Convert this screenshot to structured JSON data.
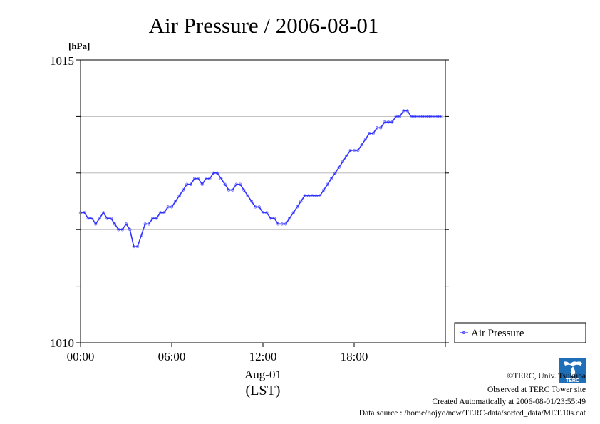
{
  "chart_data": {
    "type": "line",
    "title": "Air Pressure / 2006-08-01",
    "ylabel": "[hPa]",
    "xlabel_date": "Aug-01",
    "xlabel_tz": "(LST)",
    "ylim": [
      1010,
      1015
    ],
    "xlim": [
      "00:00",
      "24:00"
    ],
    "y_tick_labels": [
      "1015",
      "1010"
    ],
    "x_tick_labels": [
      "00:00",
      "06:00",
      "12:00",
      "18:00"
    ],
    "grid": true,
    "legend_position": "right",
    "series": [
      {
        "name": "Air Pressure",
        "color": "#3333ff",
        "x_hours": [
          0.0,
          0.25,
          0.5,
          0.75,
          1.0,
          1.25,
          1.5,
          1.75,
          2.0,
          2.25,
          2.5,
          2.75,
          3.0,
          3.25,
          3.5,
          3.75,
          4.0,
          4.25,
          4.5,
          4.75,
          5.0,
          5.25,
          5.5,
          5.75,
          6.0,
          6.25,
          6.5,
          6.75,
          7.0,
          7.25,
          7.5,
          7.75,
          8.0,
          8.25,
          8.5,
          8.75,
          9.0,
          9.25,
          9.5,
          9.75,
          10.0,
          10.25,
          10.5,
          10.75,
          11.0,
          11.25,
          11.5,
          11.75,
          12.0,
          12.25,
          12.5,
          12.75,
          13.0,
          13.25,
          13.5,
          13.75,
          14.0,
          14.25,
          14.5,
          14.75,
          15.0,
          15.25,
          15.5,
          15.75,
          16.0,
          16.25,
          16.5,
          16.75,
          17.0,
          17.25,
          17.5,
          17.75,
          18.0,
          18.25,
          18.5,
          18.75,
          19.0,
          19.25,
          19.5,
          19.75,
          20.0,
          20.25,
          20.5,
          20.75,
          21.0,
          21.25,
          21.5,
          21.75,
          22.0,
          22.25,
          22.5,
          22.75,
          23.0,
          23.25,
          23.5,
          23.75
        ],
        "values": [
          1012.3,
          1012.3,
          1012.2,
          1012.2,
          1012.1,
          1012.2,
          1012.3,
          1012.2,
          1012.2,
          1012.1,
          1012.0,
          1012.0,
          1012.1,
          1012.0,
          1011.7,
          1011.7,
          1011.9,
          1012.1,
          1012.1,
          1012.2,
          1012.2,
          1012.3,
          1012.3,
          1012.4,
          1012.4,
          1012.5,
          1012.6,
          1012.7,
          1012.8,
          1012.8,
          1012.9,
          1012.9,
          1012.8,
          1012.9,
          1012.9,
          1013.0,
          1013.0,
          1012.9,
          1012.8,
          1012.7,
          1012.7,
          1012.8,
          1012.8,
          1012.7,
          1012.6,
          1012.5,
          1012.4,
          1012.4,
          1012.3,
          1012.3,
          1012.2,
          1012.2,
          1012.1,
          1012.1,
          1012.1,
          1012.2,
          1012.3,
          1012.4,
          1012.5,
          1012.6,
          1012.6,
          1012.6,
          1012.6,
          1012.6,
          1012.7,
          1012.8,
          1012.9,
          1013.0,
          1013.1,
          1013.2,
          1013.3,
          1013.4,
          1013.4,
          1013.4,
          1013.5,
          1013.6,
          1013.7,
          1013.7,
          1013.8,
          1013.8,
          1013.9,
          1013.9,
          1013.9,
          1014.0,
          1014.0,
          1014.1,
          1014.1,
          1014.0,
          1014.0,
          1014.0,
          1014.0,
          1014.0,
          1014.0,
          1014.0,
          1014.0,
          1014.0
        ]
      }
    ]
  },
  "footer": {
    "copyright": "©TERC, Univ. Tsukuba",
    "observed": "Observed at TERC Tower site",
    "created": "Created Automatically at 2006-08-01/23:55:49",
    "source": "Data source : /home/hojyo/new/TERC-data/sorted_data/MET.10s.dat"
  },
  "logo": {
    "text": "TERC",
    "color": "#1e6fb8"
  }
}
